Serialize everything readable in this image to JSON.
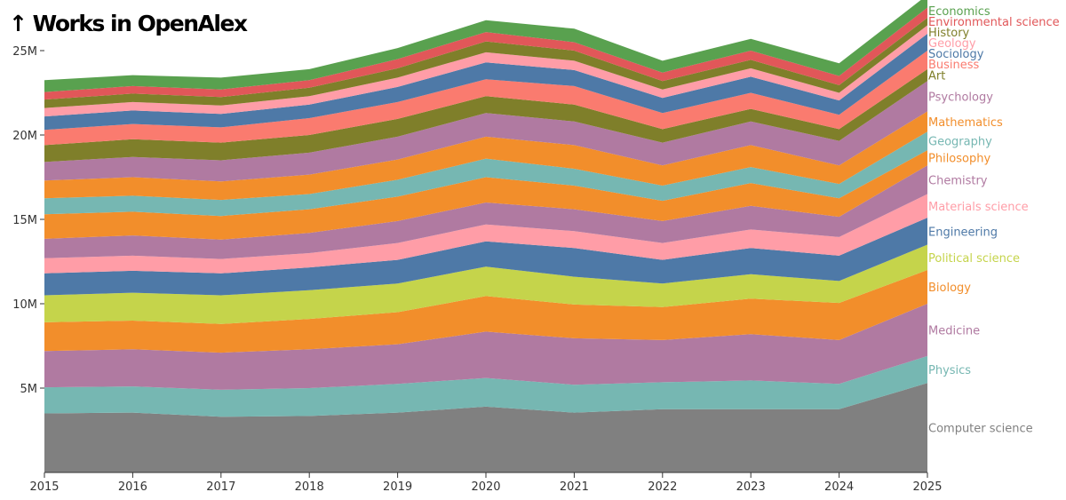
{
  "chart_data": {
    "type": "area",
    "stacked": true,
    "title": "↑ Works in OpenAlex",
    "ylabel": "Works in OpenAlex",
    "xlabel": "",
    "x": [
      "2015",
      "2016",
      "2017",
      "2018",
      "2019",
      "2020",
      "2021",
      "2022",
      "2023",
      "2024",
      "2025"
    ],
    "ylim": [
      0,
      28000000
    ],
    "yticks": [
      5000000,
      10000000,
      15000000,
      20000000,
      25000000
    ],
    "ytick_labels": [
      "5M",
      "10M",
      "15M",
      "20M",
      "25M"
    ],
    "legend": "labels at right end of each series",
    "series": [
      {
        "name": "Computer science",
        "color": "#808080",
        "values": [
          3.5,
          3.55,
          3.3,
          3.35,
          3.55,
          3.9,
          3.55,
          3.75,
          3.75,
          3.75,
          5.3
        ]
      },
      {
        "name": "Physics",
        "color": "#76b7b2",
        "values": [
          1.55,
          1.55,
          1.6,
          1.65,
          1.7,
          1.7,
          1.65,
          1.6,
          1.7,
          1.5,
          1.6
        ]
      },
      {
        "name": "Medicine",
        "color": "#b07aa1",
        "values": [
          2.15,
          2.2,
          2.2,
          2.3,
          2.35,
          2.75,
          2.75,
          2.5,
          2.75,
          2.6,
          3.1
        ]
      },
      {
        "name": "Biology",
        "color": "#f28e2b",
        "values": [
          1.7,
          1.7,
          1.7,
          1.8,
          1.9,
          2.1,
          2.0,
          1.95,
          2.1,
          2.2,
          2.0
        ]
      },
      {
        "name": "Political science",
        "color": "#c5d44b",
        "values": [
          1.6,
          1.65,
          1.7,
          1.7,
          1.7,
          1.75,
          1.65,
          1.4,
          1.45,
          1.3,
          1.5
        ]
      },
      {
        "name": "Engineering",
        "color": "#4e79a7",
        "values": [
          1.3,
          1.3,
          1.3,
          1.35,
          1.4,
          1.5,
          1.7,
          1.4,
          1.55,
          1.5,
          1.6
        ]
      },
      {
        "name": "Materials science",
        "color": "#ff9da7",
        "values": [
          0.9,
          0.9,
          0.85,
          0.85,
          1.0,
          1.0,
          1.0,
          1.0,
          1.1,
          1.1,
          1.4
        ]
      },
      {
        "name": "Chemistry",
        "color": "#b07aa1",
        "values": [
          1.15,
          1.2,
          1.15,
          1.2,
          1.3,
          1.3,
          1.3,
          1.3,
          1.4,
          1.2,
          1.7
        ]
      },
      {
        "name": "Philosophy",
        "color": "#f28e2b",
        "values": [
          1.45,
          1.4,
          1.4,
          1.4,
          1.45,
          1.5,
          1.4,
          1.2,
          1.35,
          1.1,
          0.9
        ]
      },
      {
        "name": "Geography",
        "color": "#76b7b2",
        "values": [
          0.95,
          0.95,
          0.95,
          0.9,
          1.0,
          1.1,
          1.0,
          0.9,
          0.95,
          0.85,
          1.1
        ]
      },
      {
        "name": "Mathematics",
        "color": "#f28e2b",
        "values": [
          1.05,
          1.1,
          1.1,
          1.15,
          1.2,
          1.3,
          1.4,
          1.2,
          1.3,
          1.1,
          1.2
        ]
      },
      {
        "name": "Psychology",
        "color": "#b07aa1",
        "values": [
          1.1,
          1.2,
          1.25,
          1.3,
          1.35,
          1.4,
          1.4,
          1.35,
          1.4,
          1.45,
          1.8
        ]
      },
      {
        "name": "Art",
        "color": "#7f7f2a",
        "values": [
          1.0,
          1.05,
          1.05,
          1.05,
          1.05,
          1.0,
          1.0,
          0.8,
          0.75,
          0.7,
          0.7
        ]
      },
      {
        "name": "Business",
        "color": "#fa7b6f",
        "values": [
          0.9,
          0.9,
          0.9,
          1.0,
          1.0,
          1.0,
          1.1,
          0.95,
          0.95,
          0.85,
          1.1
        ]
      },
      {
        "name": "Sociology",
        "color": "#4e79a7",
        "values": [
          0.8,
          0.8,
          0.8,
          0.8,
          0.9,
          1.0,
          0.95,
          0.9,
          0.95,
          0.85,
          1.0
        ]
      },
      {
        "name": "Geology",
        "color": "#ff9da7",
        "values": [
          0.5,
          0.5,
          0.5,
          0.5,
          0.55,
          0.6,
          0.55,
          0.5,
          0.5,
          0.45,
          0.5
        ]
      },
      {
        "name": "History",
        "color": "#7f7f2a",
        "values": [
          0.5,
          0.5,
          0.5,
          0.5,
          0.55,
          0.65,
          0.6,
          0.5,
          0.5,
          0.45,
          0.45
        ]
      },
      {
        "name": "Environmental science",
        "color": "#e15759",
        "values": [
          0.45,
          0.45,
          0.45,
          0.45,
          0.55,
          0.55,
          0.5,
          0.5,
          0.55,
          0.55,
          0.6
        ]
      },
      {
        "name": "Economics",
        "color": "#59a14f",
        "values": [
          0.7,
          0.65,
          0.7,
          0.65,
          0.65,
          0.7,
          0.8,
          0.7,
          0.7,
          0.75,
          0.75
        ]
      }
    ]
  }
}
